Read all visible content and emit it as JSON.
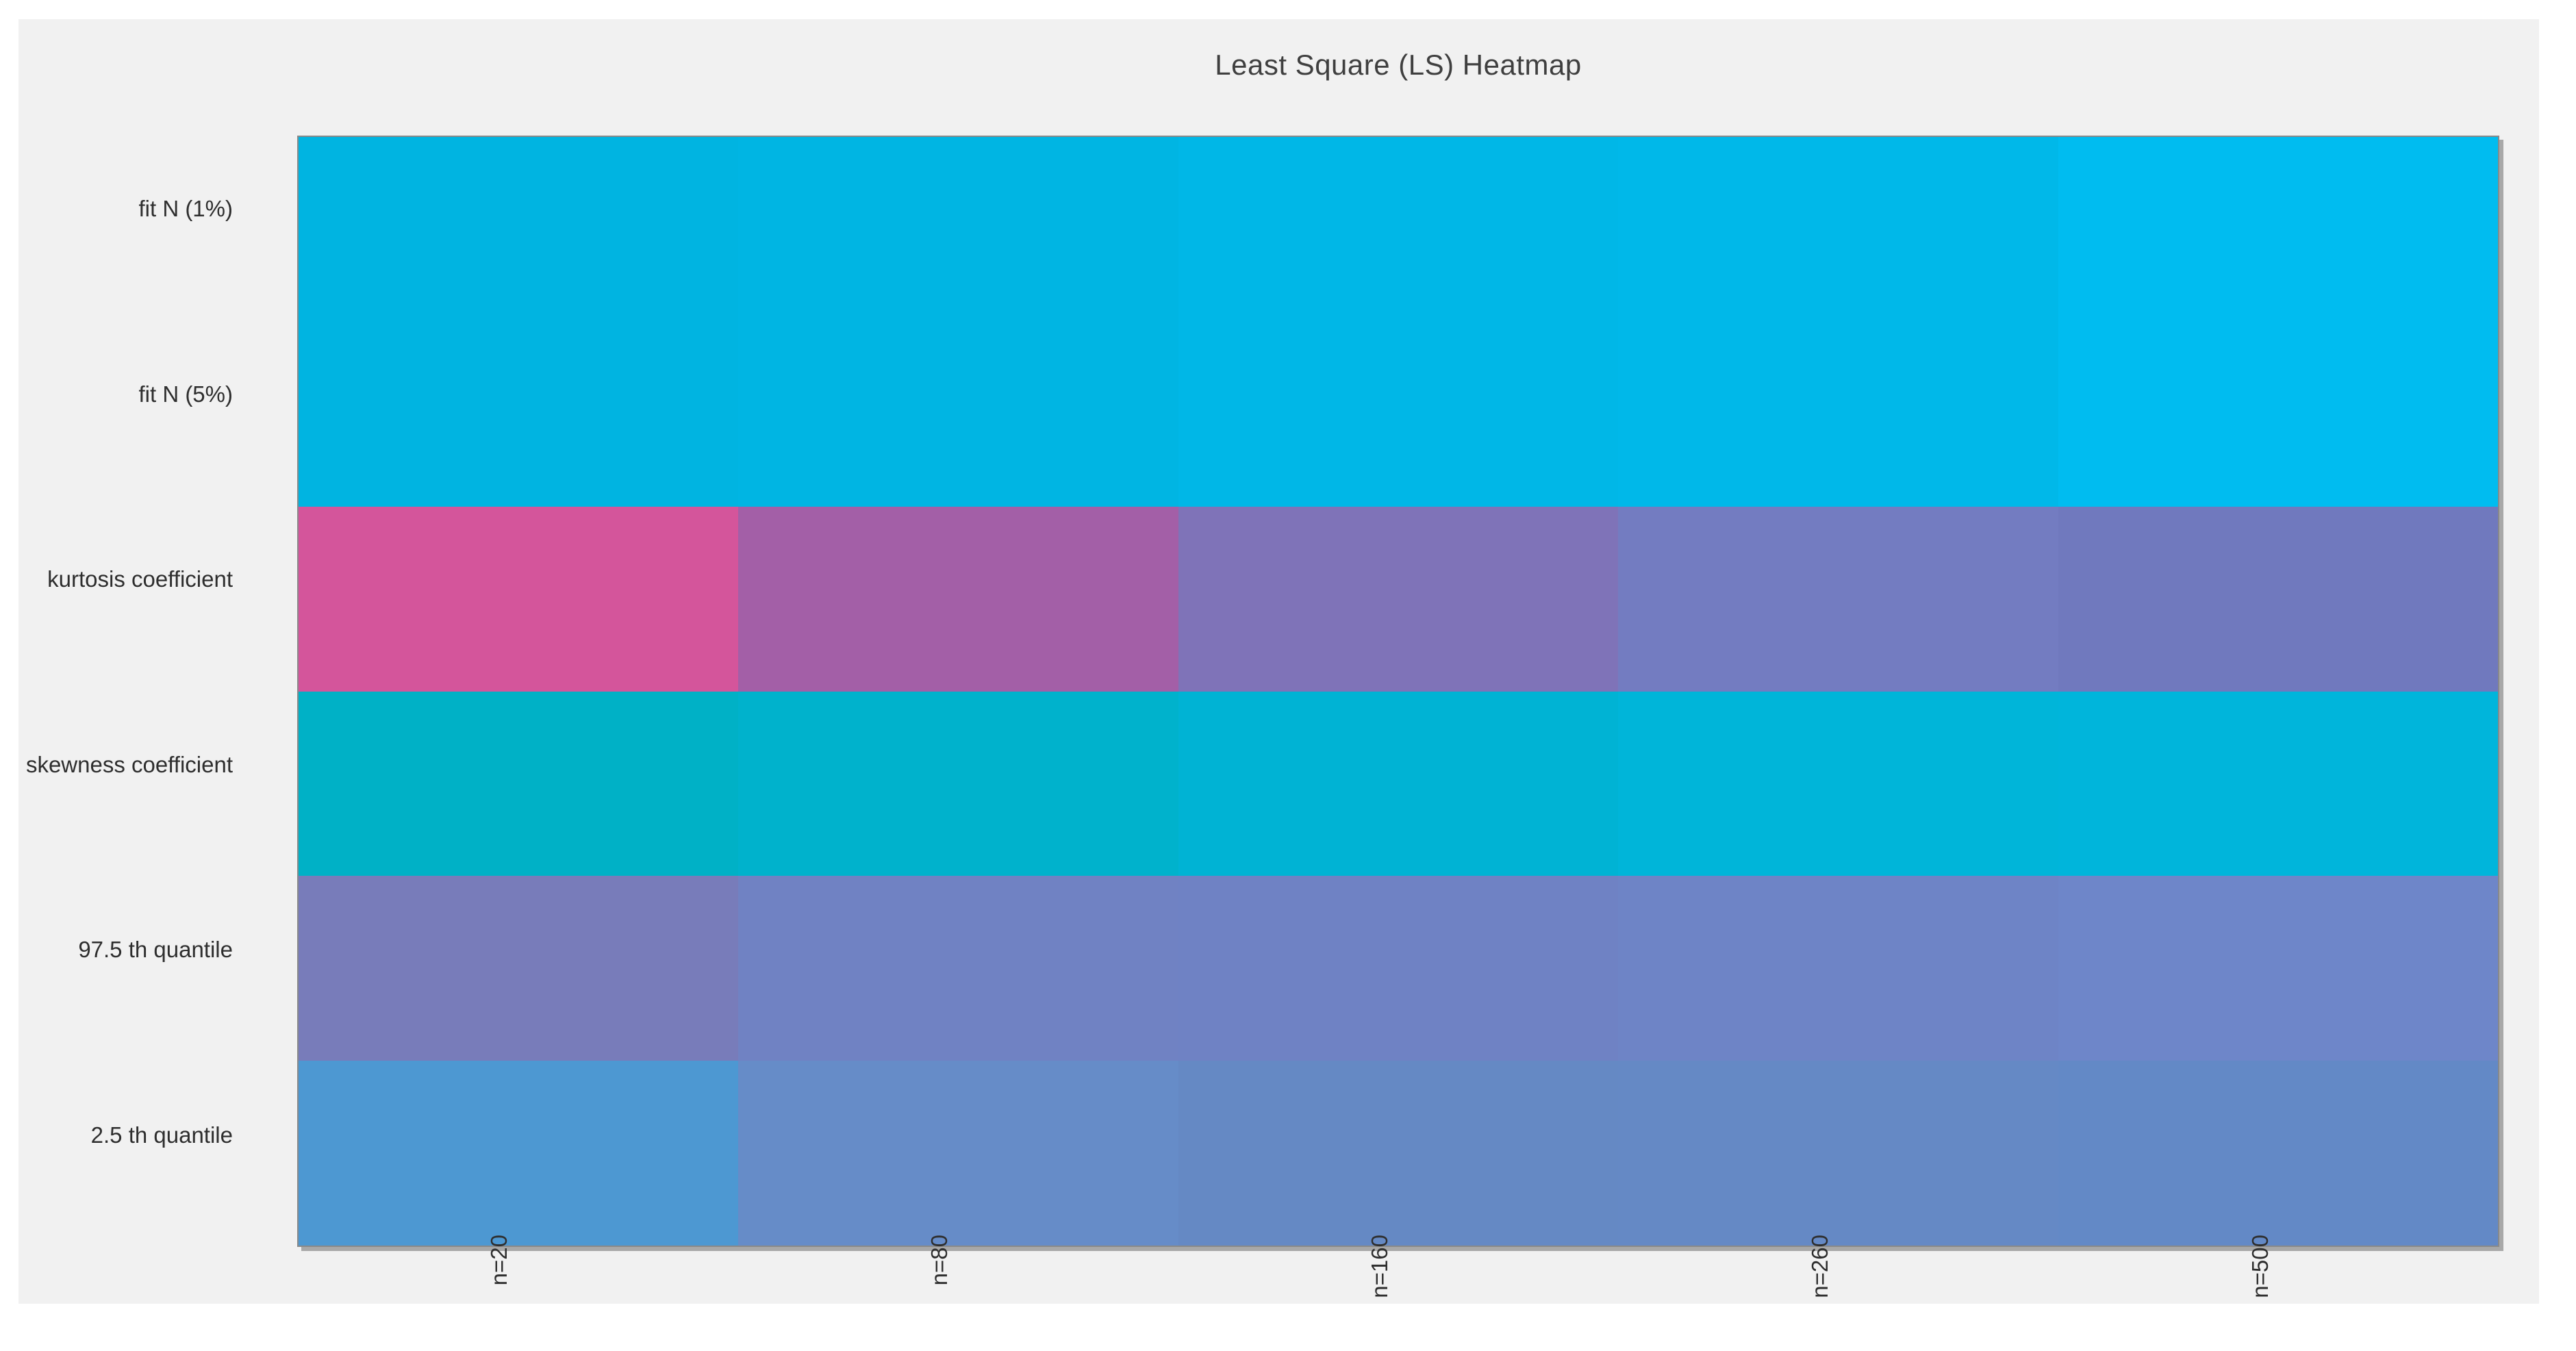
{
  "figure": {
    "title": "Least Square (LS) Heatmap"
  },
  "axes": {
    "x_tick_labels": [
      "n=20",
      "n=80",
      "n=160",
      "n=260",
      "n=500"
    ],
    "y_tick_labels": [
      "fit N (1%)",
      "fit N (5%)",
      "kurtosis coefficient",
      "skewness coefficient",
      "97.5 th quantile",
      "2.5 th quantile"
    ]
  },
  "colors": {
    "page_bg": "#ffffff",
    "figure_bg": "#f1f1f1",
    "frame": "#898989",
    "shadow": "#a8a8a8",
    "title_text": "#3f3f3f",
    "tick_text": "#2e2e2e"
  },
  "chart_data": {
    "type": "heatmap",
    "title": "Least Square (LS) Heatmap",
    "x_categories": [
      "n=20",
      "n=80",
      "n=160",
      "n=260",
      "n=500"
    ],
    "y_categories": [
      "fit N (1%)",
      "fit N (5%)",
      "kurtosis coefficient",
      "skewness coefficient",
      "97.5 th quantile",
      "2.5 th quantile"
    ],
    "x_tick_rotation_deg": 90,
    "colorbar": "none",
    "value_labels": "none",
    "grid": false,
    "cell_colors": [
      [
        "#00b4e1",
        "#00b5e3",
        "#00b7e7",
        "#00b8e9",
        "#00bcf0"
      ],
      [
        "#00b4e1",
        "#00b5e3",
        "#00b7e7",
        "#00b8e9",
        "#00bcf0"
      ],
      [
        "#d4559b",
        "#a35fa7",
        "#7f73b8",
        "#737cc1",
        "#7079be"
      ],
      [
        "#00b1c6",
        "#00b2cc",
        "#00b3d4",
        "#00b5d9",
        "#00b5db"
      ],
      [
        "#787cba",
        "#7082c3",
        "#6f82c4",
        "#6e84c6",
        "#6e86c9"
      ],
      [
        "#4d98d2",
        "#668cc8",
        "#6589c4",
        "#6589c5",
        "#6389c6"
      ]
    ]
  }
}
